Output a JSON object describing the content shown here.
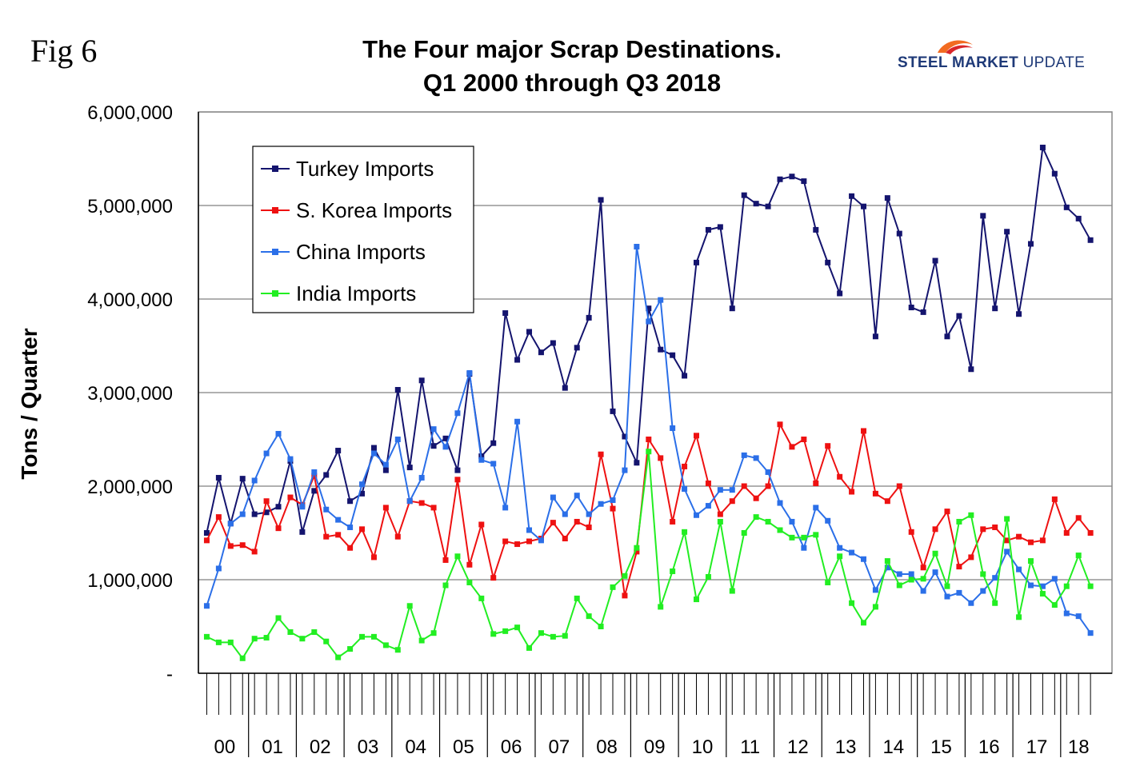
{
  "fig_label": "Fig 6",
  "logo": {
    "strong": "STEEL MARKET",
    "rest": "UPDATE",
    "colors": {
      "arc_orange": "#f26b21",
      "arc_red": "#d9262a",
      "text": "#1f3a78"
    }
  },
  "chart_data": {
    "type": "line",
    "title": "The Four major Scrap Destinations.",
    "subtitle": "Q1 2000 through Q3 2018",
    "ylabel": "Tons / Quarter",
    "xlabel": "",
    "ylim": [
      0,
      6000000
    ],
    "yticks": [
      0,
      1000000,
      2000000,
      3000000,
      4000000,
      5000000,
      6000000
    ],
    "ytick_labels": [
      "-",
      "1,000,000",
      "2,000,000",
      "3,000,000",
      "4,000,000",
      "5,000,000",
      "6,000,000"
    ],
    "grid": true,
    "legend_position": "top-left",
    "year_labels": [
      "00",
      "01",
      "02",
      "03",
      "04",
      "05",
      "06",
      "07",
      "08",
      "09",
      "10",
      "11",
      "12",
      "13",
      "14",
      "15",
      "16",
      "17",
      "18"
    ],
    "quarters_per_year": 4,
    "num_points": 75,
    "series": [
      {
        "name": "Turkey Imports",
        "color": "#14146e",
        "values": [
          1500000,
          2090000,
          1600000,
          2080000,
          1700000,
          1720000,
          1780000,
          2270000,
          1510000,
          1950000,
          2120000,
          2380000,
          1840000,
          1920000,
          2410000,
          2170000,
          3030000,
          2200000,
          3130000,
          2430000,
          2510000,
          2170000,
          3200000,
          2320000,
          2460000,
          3850000,
          3350000,
          3650000,
          3430000,
          3530000,
          3050000,
          3480000,
          3800000,
          5060000,
          2800000,
          2530000,
          2250000,
          3900000,
          3460000,
          3400000,
          3180000,
          4390000,
          4740000,
          4770000,
          3900000,
          5110000,
          5020000,
          4990000,
          5280000,
          5310000,
          5260000,
          4740000,
          4390000,
          4060000,
          5100000,
          4990000,
          3600000,
          5080000,
          4700000,
          3910000,
          3860000,
          4410000,
          3600000,
          3820000,
          3250000,
          4890000,
          3900000,
          4720000,
          3840000,
          4590000,
          5620000,
          5340000,
          4980000,
          4860000,
          4630000
        ]
      },
      {
        "name": "S. Korea Imports",
        "color": "#ee1111",
        "values": [
          1420000,
          1670000,
          1360000,
          1370000,
          1300000,
          1840000,
          1550000,
          1880000,
          1800000,
          2110000,
          1460000,
          1480000,
          1340000,
          1540000,
          1240000,
          1770000,
          1460000,
          1840000,
          1820000,
          1770000,
          1210000,
          2070000,
          1160000,
          1590000,
          1020000,
          1410000,
          1380000,
          1410000,
          1440000,
          1610000,
          1440000,
          1620000,
          1560000,
          2340000,
          1760000,
          830000,
          1300000,
          2500000,
          2300000,
          1620000,
          2210000,
          2540000,
          2030000,
          1700000,
          1840000,
          2000000,
          1870000,
          2000000,
          2660000,
          2420000,
          2500000,
          2030000,
          2430000,
          2100000,
          1940000,
          2590000,
          1920000,
          1840000,
          2000000,
          1510000,
          1130000,
          1540000,
          1730000,
          1140000,
          1240000,
          1540000,
          1560000,
          1420000,
          1460000,
          1400000,
          1420000,
          1860000,
          1500000,
          1660000,
          1500000
        ]
      },
      {
        "name": "China Imports",
        "color": "#2b6fe8",
        "values": [
          720000,
          1120000,
          1600000,
          1700000,
          2060000,
          2350000,
          2560000,
          2290000,
          1780000,
          2150000,
          1750000,
          1640000,
          1560000,
          2020000,
          2350000,
          2230000,
          2500000,
          1840000,
          2090000,
          2610000,
          2420000,
          2780000,
          3210000,
          2280000,
          2240000,
          1770000,
          2690000,
          1530000,
          1420000,
          1880000,
          1700000,
          1900000,
          1700000,
          1810000,
          1850000,
          2170000,
          4560000,
          3760000,
          3990000,
          2620000,
          1970000,
          1690000,
          1790000,
          1960000,
          1960000,
          2330000,
          2300000,
          2150000,
          1820000,
          1620000,
          1340000,
          1770000,
          1630000,
          1340000,
          1290000,
          1220000,
          890000,
          1130000,
          1060000,
          1060000,
          880000,
          1080000,
          820000,
          860000,
          750000,
          880000,
          1020000,
          1300000,
          1110000,
          940000,
          930000,
          1010000,
          640000,
          610000,
          430000
        ]
      },
      {
        "name": "India Imports",
        "color": "#22ee22",
        "values": [
          390000,
          330000,
          330000,
          160000,
          370000,
          380000,
          590000,
          440000,
          370000,
          440000,
          340000,
          170000,
          260000,
          390000,
          390000,
          300000,
          250000,
          720000,
          350000,
          430000,
          940000,
          1250000,
          970000,
          800000,
          420000,
          450000,
          490000,
          270000,
          430000,
          390000,
          400000,
          800000,
          610000,
          500000,
          920000,
          1040000,
          1340000,
          2370000,
          710000,
          1090000,
          1510000,
          790000,
          1030000,
          1620000,
          880000,
          1500000,
          1670000,
          1620000,
          1530000,
          1450000,
          1450000,
          1480000,
          970000,
          1250000,
          750000,
          540000,
          710000,
          1200000,
          940000,
          1000000,
          1010000,
          1280000,
          930000,
          1620000,
          1690000,
          1060000,
          750000,
          1650000,
          600000,
          1200000,
          850000,
          730000,
          930000,
          1260000,
          930000
        ]
      }
    ]
  }
}
